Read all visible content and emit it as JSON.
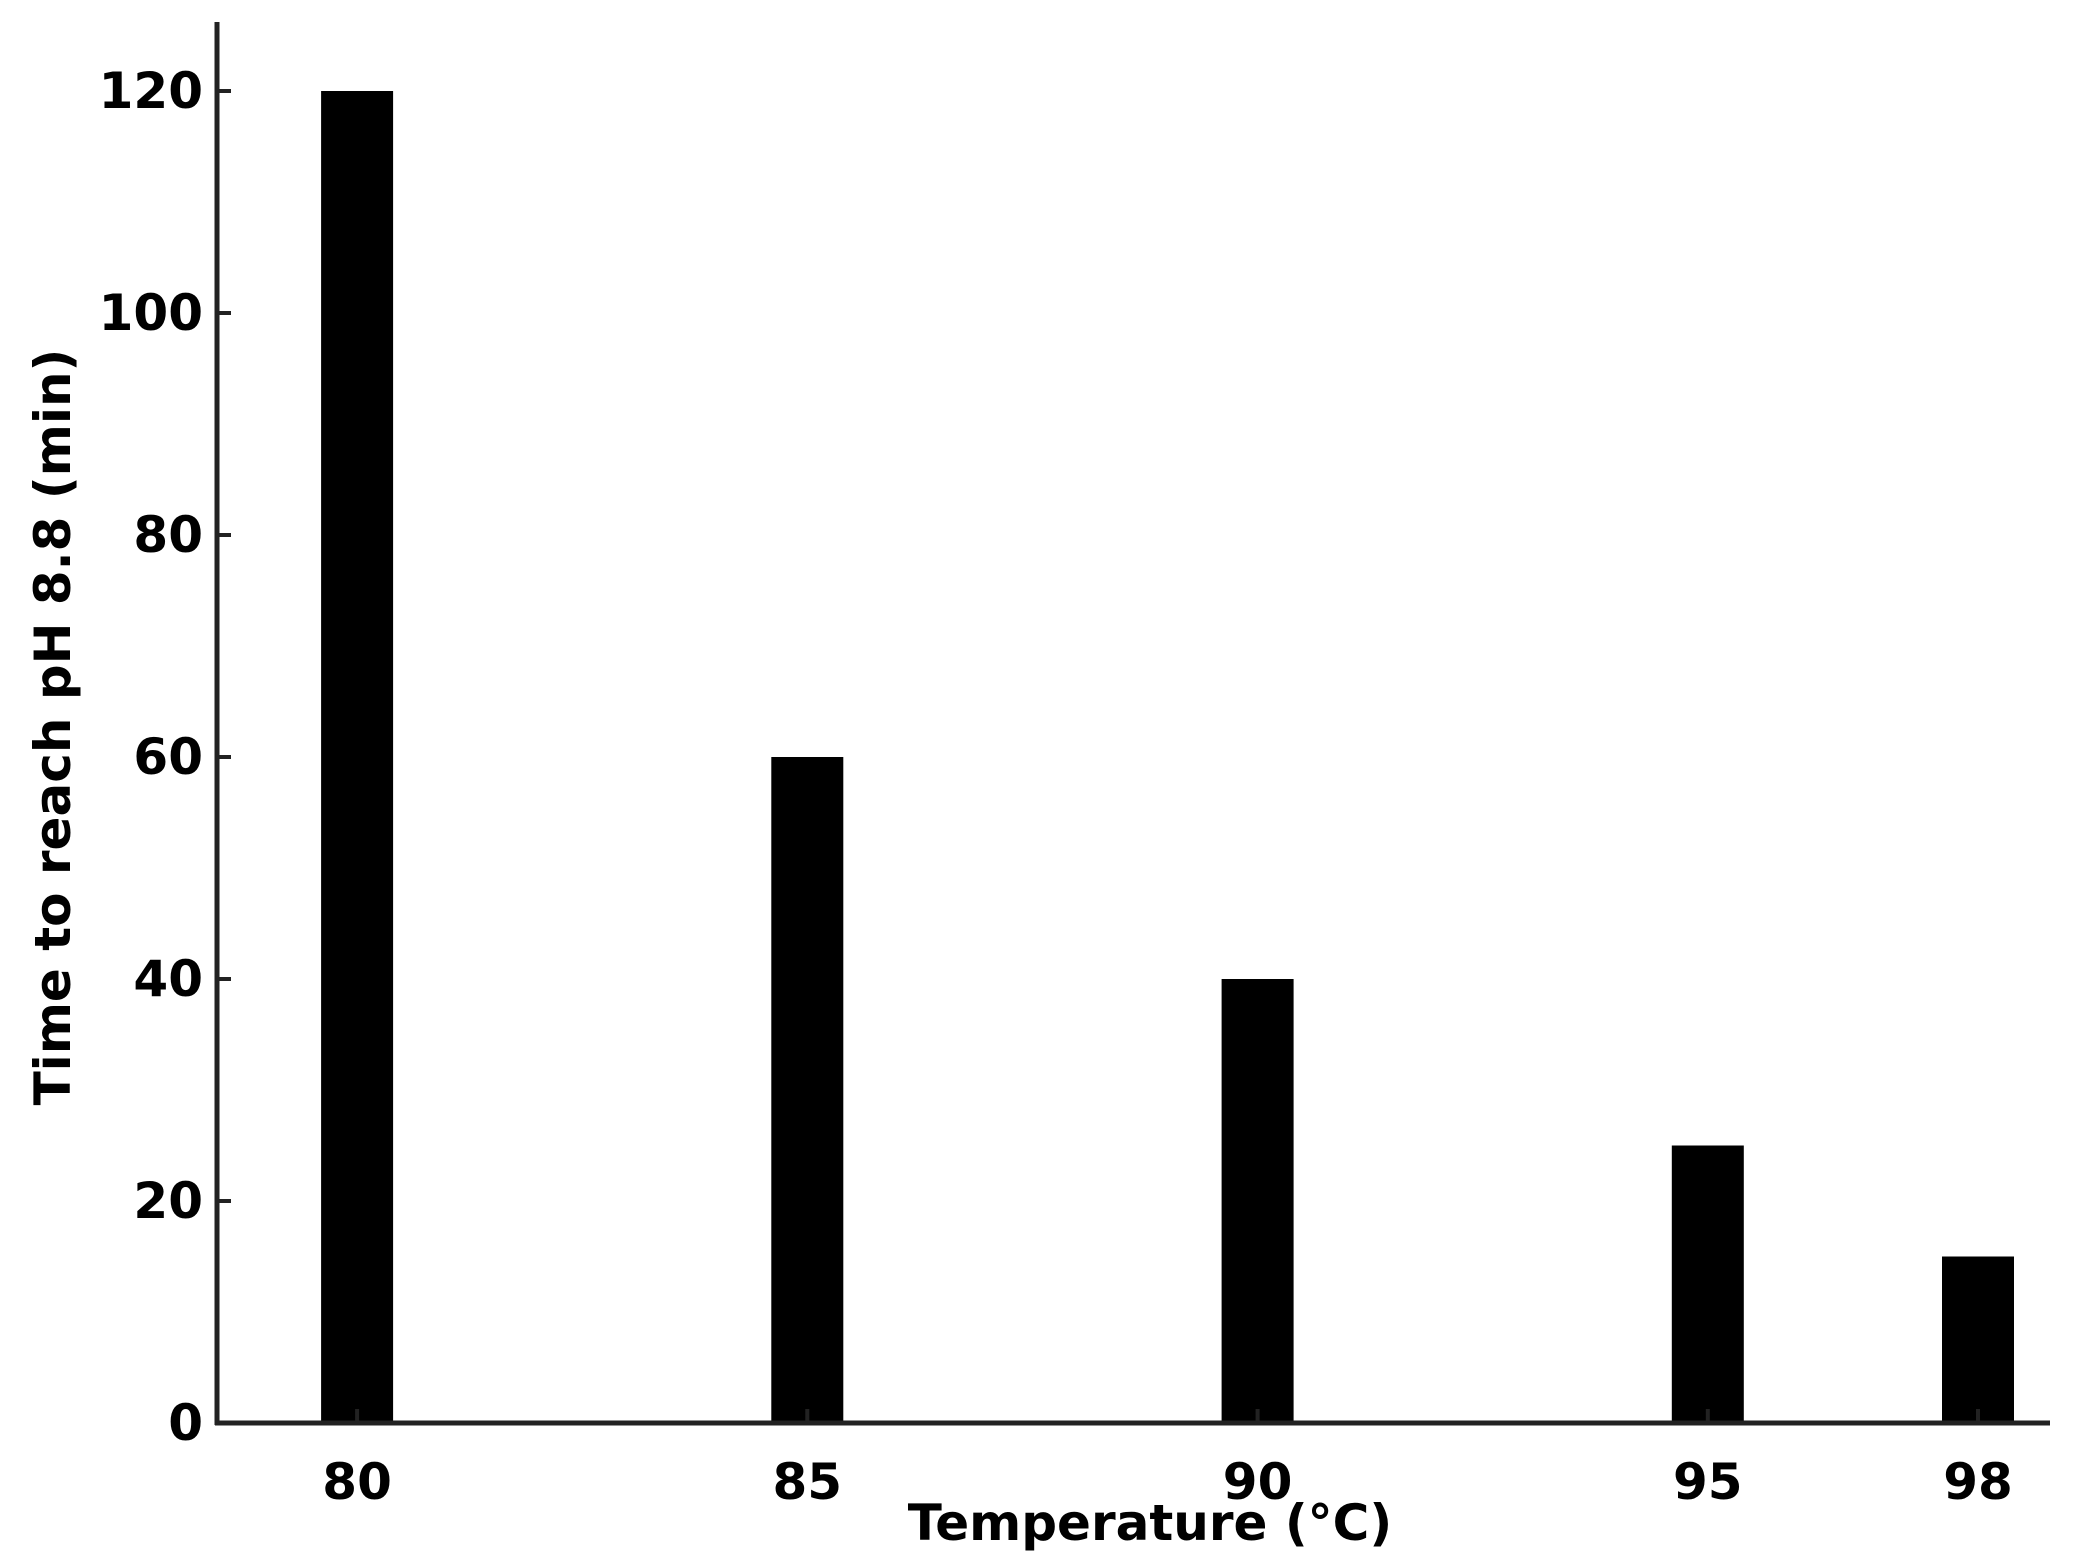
{
  "chart_data": {
    "type": "bar",
    "title": "",
    "xlabel": "Temperature (°C)",
    "ylabel": "Time to reach pH 8.8 (min)",
    "x": [
      80,
      85,
      90,
      95,
      98
    ],
    "categories": [
      "80",
      "85",
      "90",
      "95",
      "98"
    ],
    "values": [
      120,
      60,
      40,
      25,
      15
    ],
    "xlim": [
      78.5,
      98.8
    ],
    "ylim": [
      0,
      126
    ],
    "yticks": [
      0,
      20,
      40,
      60,
      80,
      100,
      120
    ],
    "grid": false,
    "legend": "none",
    "bar_color": "#000000",
    "axis_color": "#222222"
  }
}
